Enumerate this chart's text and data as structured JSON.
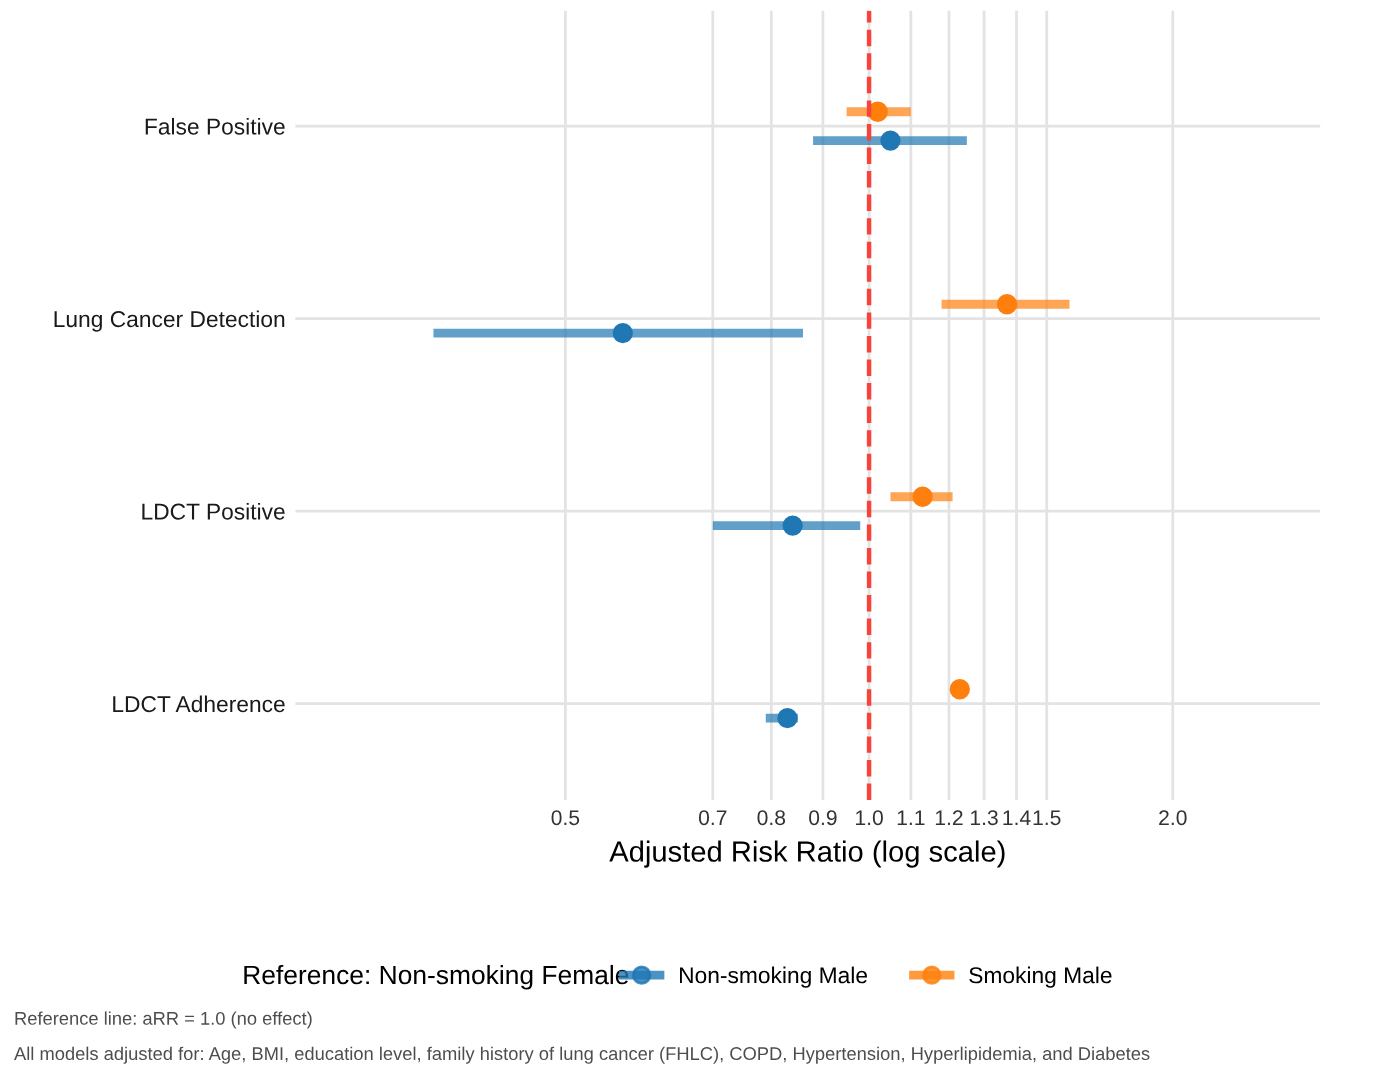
{
  "chart_data": {
    "type": "scatter",
    "orientation": "horizontal",
    "xlabel": "Adjusted Risk Ratio (log scale)",
    "legend_title": "Reference: Non-smoking Female",
    "categories": [
      "False Positive",
      "Lung Cancer Detection",
      "LDCT Positive",
      "LDCT Adherence"
    ],
    "series": [
      {
        "name": "Non-smoking Male",
        "color": "#1f77b4",
        "values": [
          1.05,
          0.57,
          0.84,
          0.83
        ],
        "errors": [
          [
            0.88,
            1.25
          ],
          [
            0.37,
            0.86
          ],
          [
            0.7,
            0.98
          ],
          [
            0.79,
            0.85
          ]
        ]
      },
      {
        "name": "Smoking Male",
        "color": "#ff7f0e",
        "values": [
          1.02,
          1.37,
          1.13,
          1.23
        ],
        "errors": [
          [
            0.95,
            1.1
          ],
          [
            1.18,
            1.58
          ],
          [
            1.05,
            1.21
          ],
          null
        ]
      }
    ],
    "log": "x",
    "xlim": [
      0.27,
      2.8
    ],
    "xticks": [
      0.5,
      0.7,
      0.8,
      0.9,
      {
        "value": 1.0,
        "label": "1.0"
      },
      1.1,
      1.2,
      1.3,
      1.4,
      1.5,
      {
        "value": 2.0,
        "label": "2.0"
      }
    ],
    "ref_lines": [
      {
        "axis": "x",
        "value": 1.0,
        "color": "#f8433a",
        "line_style": "dashed"
      }
    ],
    "grid": true,
    "legend": "bottom",
    "marker": "circle",
    "annotations": [
      "Reference line: aRR = 1.0 (no effect)",
      "All models adjusted for: Age, BMI, education level, family history of lung cancer (FHLC), COPD, Hypertension, Hyperlipidemia, and Diabetes"
    ]
  }
}
